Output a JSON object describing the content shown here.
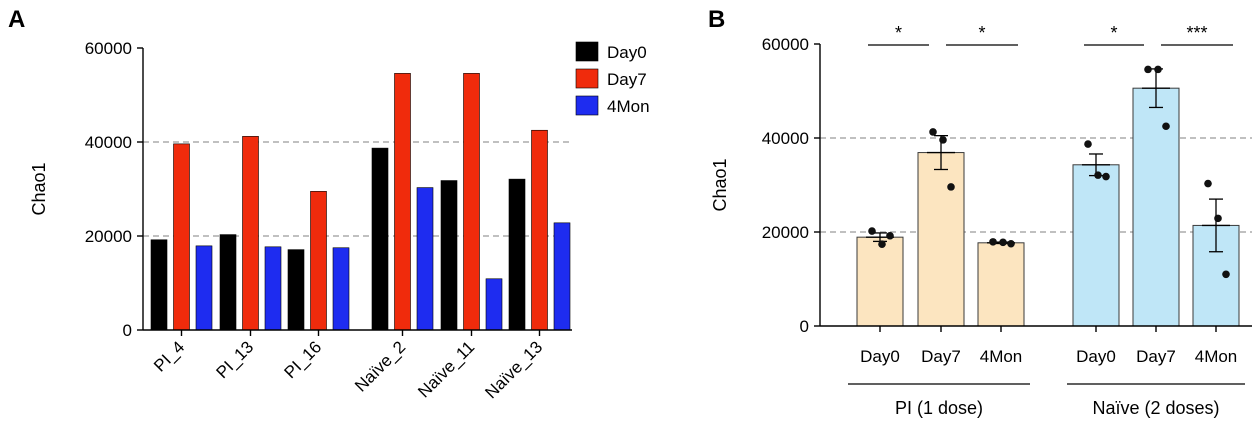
{
  "panels": {
    "a": "A",
    "b": "B"
  },
  "chart_data": [
    {
      "type": "bar",
      "ylabel": "Chao1",
      "xlabel": "",
      "ylim": [
        0,
        60000
      ],
      "yticks": [
        "0",
        "20000",
        "40000",
        "60000"
      ],
      "gridlines": [
        20000,
        40000
      ],
      "legend_position": "top-right",
      "categories": [
        "PI_4",
        "PI_13",
        "PI_16",
        "Naïve_2",
        "Naïve_11",
        "Naïve_13"
      ],
      "series": [
        {
          "name": "Day0",
          "color": "#000000",
          "values": [
            19200,
            20300,
            17100,
            38700,
            31800,
            32100
          ]
        },
        {
          "name": "Day7",
          "color": "#f02b0c",
          "values": [
            39600,
            41200,
            29500,
            54600,
            54600,
            42500
          ]
        },
        {
          "name": "4Mon",
          "color": "#1e2cf0",
          "values": [
            17900,
            17700,
            17500,
            30300,
            10900,
            22800
          ]
        }
      ]
    },
    {
      "type": "bar",
      "ylabel": "Chao1",
      "xlabel": "",
      "ylim": [
        0,
        60000
      ],
      "yticks": [
        "0",
        "20000",
        "40000",
        "60000"
      ],
      "gridlines": [
        20000,
        40000
      ],
      "groups": [
        {
          "label": "PI (1 dose)",
          "color": "#fce5c0",
          "bars": [
            {
              "label": "Day0",
              "mean": 18900,
              "sem": 900,
              "points": [
                20200,
                17400,
                19200
              ]
            },
            {
              "label": "Day7",
              "mean": 36900,
              "sem": 3600,
              "points": [
                41300,
                39600,
                29600
              ]
            },
            {
              "label": "4Mon",
              "mean": 17700,
              "sem": 150,
              "points": [
                17900,
                17800,
                17500
              ]
            }
          ],
          "significance": [
            {
              "from": 0,
              "to": 1,
              "label": "*"
            },
            {
              "from": 1,
              "to": 2,
              "label": "*"
            }
          ]
        },
        {
          "label": "Naïve (2 doses)",
          "color": "#bfe6f7",
          "bars": [
            {
              "label": "Day0",
              "mean": 34300,
              "sem": 2300,
              "points": [
                38700,
                32100,
                31800
              ]
            },
            {
              "label": "Day7",
              "mean": 50600,
              "sem": 4100,
              "points": [
                54600,
                54600,
                42500
              ]
            },
            {
              "label": "4Mon",
              "mean": 21400,
              "sem": 5600,
              "points": [
                30300,
                22900,
                11000
              ]
            }
          ],
          "significance": [
            {
              "from": 0,
              "to": 1,
              "label": "*"
            },
            {
              "from": 1,
              "to": 2,
              "label": "***"
            }
          ]
        }
      ]
    }
  ]
}
